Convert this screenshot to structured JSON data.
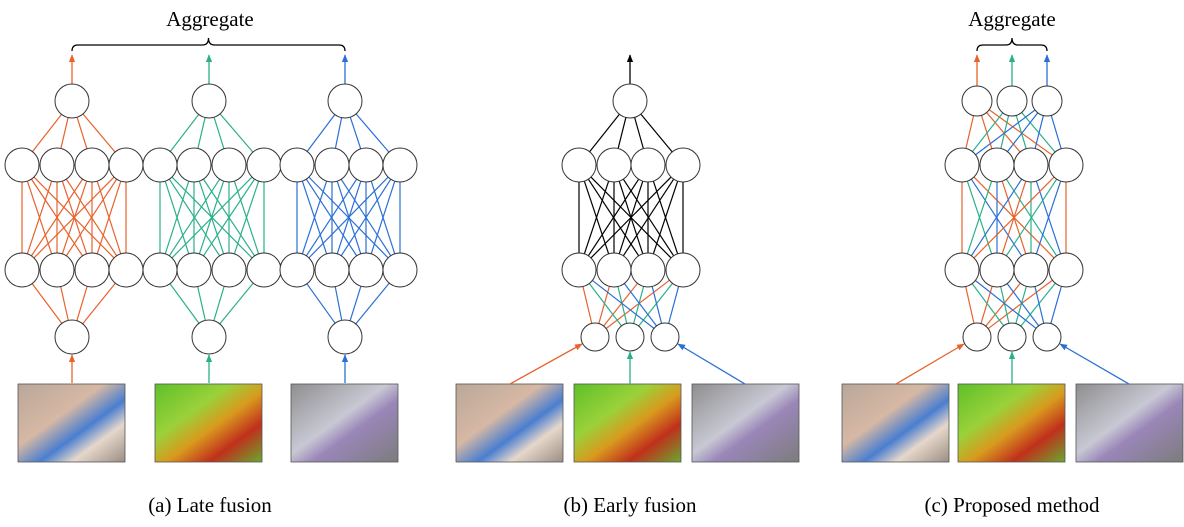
{
  "panels": [
    {
      "aggregate": "Aggregate",
      "caption": "(a) Late fusion"
    },
    {
      "caption": "(b) Early fusion"
    },
    {
      "aggregate": "Aggregate",
      "caption": "(c) Proposed method"
    }
  ]
}
